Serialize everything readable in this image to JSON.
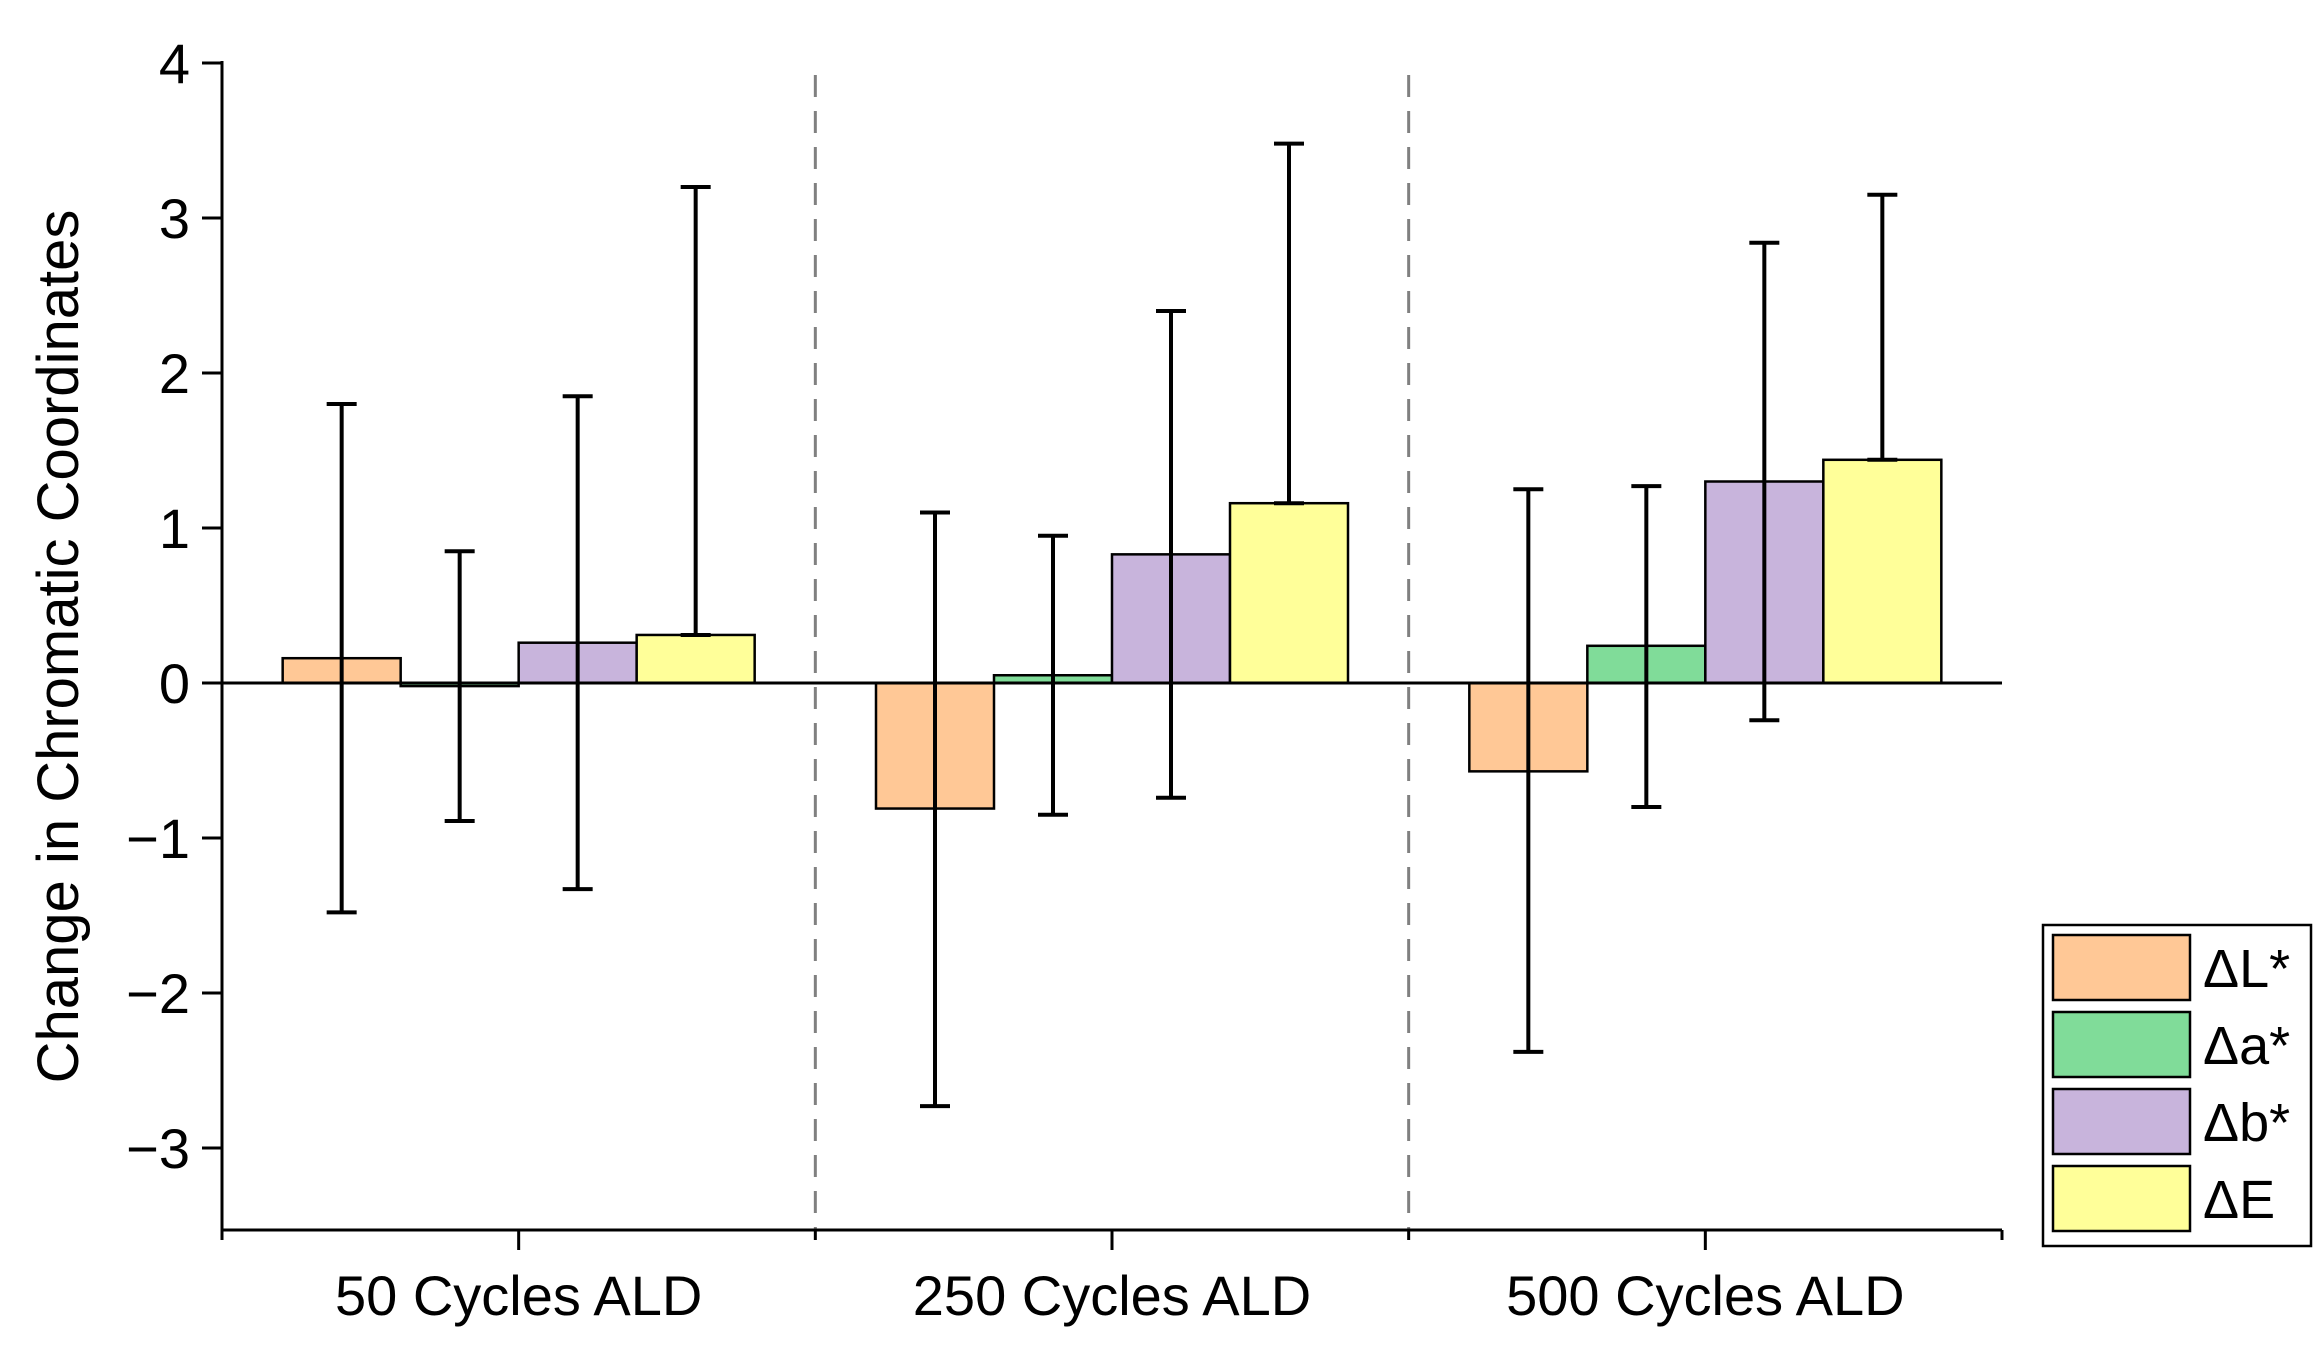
{
  "chart_data": {
    "type": "bar",
    "title": "",
    "xlabel": "",
    "ylabel": "Change in Chromatic Coordinates",
    "ylim": [
      -3.5,
      4
    ],
    "yticks": [
      -3,
      -2,
      -1,
      0,
      1,
      2,
      3,
      4
    ],
    "ytick_labels": [
      "−3",
      "−2",
      "−1",
      "0",
      "1",
      "2",
      "3",
      "4"
    ],
    "categories": [
      "50 Cycles ALD",
      "250 Cycles ALD",
      "500 Cycles ALD"
    ],
    "series": [
      {
        "name": "ΔL*",
        "color": "#FFC896",
        "values": [
          0.16,
          -0.81,
          -0.57
        ],
        "err_high": [
          1.8,
          1.1,
          1.25
        ],
        "err_low": [
          -1.48,
          -2.73,
          -2.38
        ]
      },
      {
        "name": "Δa*",
        "color": "#80DC99",
        "values": [
          -0.02,
          0.05,
          0.24
        ],
        "err_high": [
          0.85,
          0.95,
          1.27
        ],
        "err_low": [
          -0.89,
          -0.85,
          -0.8
        ]
      },
      {
        "name": "Δb*",
        "color": "#C8B4DC",
        "values": [
          0.26,
          0.83,
          1.3
        ],
        "err_high": [
          1.85,
          2.4,
          2.84
        ],
        "err_low": [
          -1.33,
          -0.74,
          -0.24
        ]
      },
      {
        "name": "ΔE",
        "color": "#FFFF99",
        "values": [
          0.31,
          1.16,
          1.44
        ],
        "err_high": [
          3.2,
          3.48,
          3.15
        ],
        "err_low": [
          0.31,
          1.16,
          1.44
        ]
      }
    ],
    "legend_position": "bottom-right",
    "group_separators": "dashed vertical lines between categories"
  }
}
